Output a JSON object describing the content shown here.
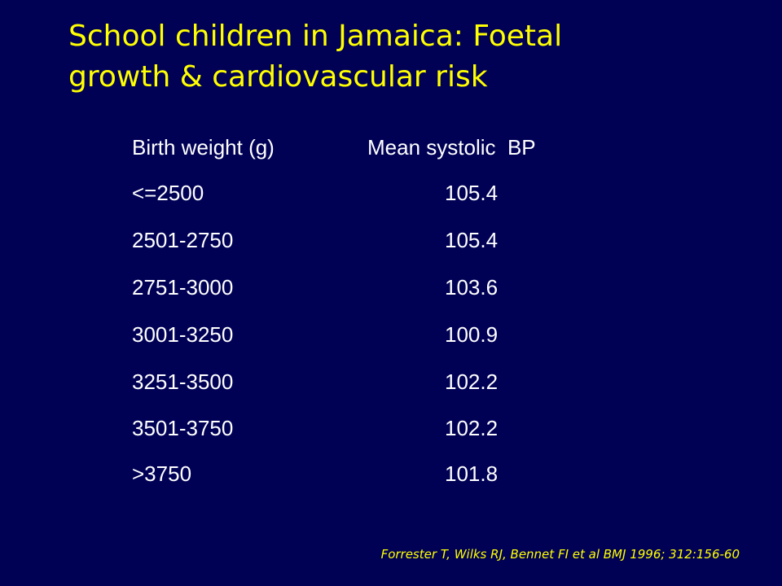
{
  "slide": {
    "title_line1": "School children in Jamaica: Foetal",
    "title_line2": "growth & cardiovascular risk",
    "background_color": "#000155",
    "title_color": "#FFFF00",
    "text_color": "#FFFFFF"
  },
  "table": {
    "headers": [
      "Birth weight (g)",
      "Mean systolic  BP"
    ],
    "rows": [
      {
        "birth_weight": "<=2500",
        "mean_systolic_bp": "105.4"
      },
      {
        "birth_weight": "2501-2750",
        "mean_systolic_bp": "105.4"
      },
      {
        "birth_weight": "2751-3000",
        "mean_systolic_bp": "103.6"
      },
      {
        "birth_weight": "3001-3250",
        "mean_systolic_bp": "100.9"
      },
      {
        "birth_weight": "3251-3500",
        "mean_systolic_bp": "102.2"
      },
      {
        "birth_weight": "3501-3750",
        "mean_systolic_bp": "102.2"
      },
      {
        "birth_weight": ">3750",
        "mean_systolic_bp": "101.8"
      }
    ]
  },
  "citation": "Forrester T, Wilks RJ, Bennet FI et al  BMJ 1996; 312:156-60"
}
